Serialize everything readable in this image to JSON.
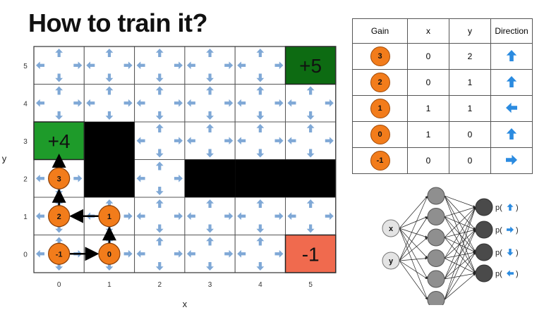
{
  "title": "How to train it?",
  "grid": {
    "x_axis_label": "x",
    "y_axis_label": "y",
    "x_ticks": [
      "0",
      "1",
      "2",
      "3",
      "4",
      "5"
    ],
    "y_ticks": [
      "0",
      "1",
      "2",
      "3",
      "4",
      "5"
    ],
    "cols": 6,
    "rows": 6,
    "walls": [
      [
        1,
        2
      ],
      [
        1,
        3
      ],
      [
        3,
        2
      ],
      [
        4,
        2
      ],
      [
        5,
        2
      ]
    ],
    "rewards": [
      {
        "x": 0,
        "y": 3,
        "label": "+4",
        "color": "#1e9b2a"
      },
      {
        "x": 5,
        "y": 5,
        "label": "+5",
        "color": "#0d6b12"
      },
      {
        "x": 5,
        "y": 0,
        "label": "-1",
        "color": "#f06a4e"
      }
    ],
    "path_nodes": [
      {
        "x": 0,
        "y": 0,
        "label": "-1"
      },
      {
        "x": 1,
        "y": 0,
        "label": "0"
      },
      {
        "x": 1,
        "y": 1,
        "label": "1"
      },
      {
        "x": 0,
        "y": 1,
        "label": "2"
      },
      {
        "x": 0,
        "y": 2,
        "label": "3"
      }
    ],
    "arrow_color": "#7fa8d6",
    "node_color": "#f27c1b"
  },
  "table": {
    "headers": [
      "Gain",
      "x",
      "y",
      "Direction"
    ],
    "rows": [
      {
        "gain": "3",
        "x": "0",
        "y": "2",
        "direction": "up"
      },
      {
        "gain": "2",
        "x": "0",
        "y": "1",
        "direction": "up"
      },
      {
        "gain": "1",
        "x": "1",
        "y": "1",
        "direction": "left"
      },
      {
        "gain": "0",
        "x": "1",
        "y": "0",
        "direction": "up"
      },
      {
        "gain": "-1",
        "x": "0",
        "y": "0",
        "direction": "right"
      }
    ],
    "arrow_color": "#2b8be0"
  },
  "network": {
    "inputs": [
      "x",
      "y"
    ],
    "hidden_count": 6,
    "outputs": [
      {
        "prefix": "p(",
        "direction": "up",
        "suffix": ")"
      },
      {
        "prefix": "p(",
        "direction": "right",
        "suffix": ")"
      },
      {
        "prefix": "p(",
        "direction": "down",
        "suffix": ")"
      },
      {
        "prefix": "p(",
        "direction": "left",
        "suffix": ")"
      }
    ]
  }
}
